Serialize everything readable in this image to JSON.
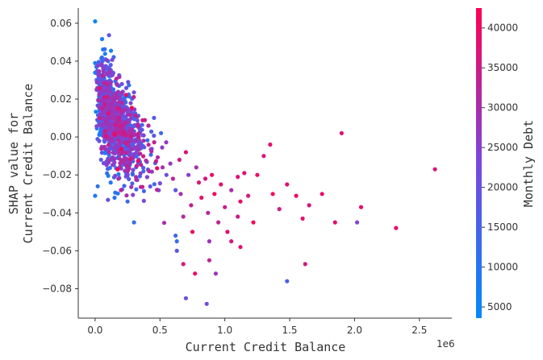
{
  "chart_data": {
    "type": "scatter",
    "title": "",
    "xlabel": "Current Credit Balance",
    "x_offset_text": "1e6",
    "ylabel_line1": "SHAP value for",
    "ylabel_line2": "Current Credit Balance",
    "xlim": [
      -0.13,
      2.75
    ],
    "ylim": [
      -0.0955,
      0.068
    ],
    "xticks": [
      0.0,
      0.5,
      1.0,
      1.5,
      2.0,
      2.5
    ],
    "xtick_labels": [
      "0.0",
      "0.5",
      "1.0",
      "1.5",
      "2.0",
      "2.5"
    ],
    "yticks": [
      0.06,
      0.04,
      0.02,
      0.0,
      -0.02,
      -0.04,
      -0.06,
      -0.08
    ],
    "ytick_labels": [
      "0.06",
      "0.04",
      "0.02",
      "0.00",
      "−0.02",
      "−0.04",
      "−0.06",
      "−0.08"
    ],
    "colorbar": {
      "label": "Monthly Debt",
      "range": [
        3600,
        42500
      ],
      "ticks": [
        5000,
        10000,
        15000,
        20000,
        25000,
        30000,
        35000,
        40000
      ],
      "tick_labels": [
        "5000",
        "10000",
        "15000",
        "20000",
        "25000",
        "30000",
        "35000",
        "40000"
      ],
      "color_low": "#008afb",
      "color_mid": "#7a47dd",
      "color_high": "#ff0052"
    },
    "grid": false,
    "legend": "none",
    "cluster": {
      "count": 1100,
      "x_range": [
        0.0,
        0.62
      ],
      "note_data": "dense cluster near origin; high-x tail listed in points"
    },
    "points": [
      [
        0.0,
        0.061,
        5000
      ],
      [
        0.0,
        0.039,
        8000
      ],
      [
        0.01,
        0.037,
        9000
      ],
      [
        0.0,
        0.034,
        7000
      ],
      [
        0.08,
        0.041,
        14000
      ],
      [
        0.1,
        0.04,
        12000
      ],
      [
        0.12,
        0.038,
        16000
      ],
      [
        0.09,
        0.036,
        11000
      ],
      [
        0.03,
        0.028,
        9000
      ],
      [
        0.07,
        0.031,
        15000
      ],
      [
        0.05,
        0.022,
        13000
      ],
      [
        0.52,
        -0.016,
        30000
      ],
      [
        0.55,
        -0.02,
        21000
      ],
      [
        0.58,
        -0.014,
        27000
      ],
      [
        0.6,
        -0.022,
        33000
      ],
      [
        0.62,
        -0.028,
        18000
      ],
      [
        0.65,
        -0.012,
        35000
      ],
      [
        0.66,
        -0.03,
        29000
      ],
      [
        0.68,
        -0.042,
        31000
      ],
      [
        0.7,
        -0.008,
        38000
      ],
      [
        0.72,
        -0.02,
        26000
      ],
      [
        0.74,
        -0.036,
        34000
      ],
      [
        0.75,
        -0.05,
        40000
      ],
      [
        0.78,
        -0.016,
        30000
      ],
      [
        0.8,
        -0.024,
        37000
      ],
      [
        0.82,
        -0.032,
        39000
      ],
      [
        0.85,
        -0.022,
        36000
      ],
      [
        0.87,
        -0.04,
        32000
      ],
      [
        0.88,
        -0.055,
        28000
      ],
      [
        0.9,
        -0.02,
        40000
      ],
      [
        0.92,
        -0.03,
        41000
      ],
      [
        0.95,
        -0.045,
        33000
      ],
      [
        0.97,
        -0.025,
        38000
      ],
      [
        1.0,
        -0.037,
        34000
      ],
      [
        1.02,
        -0.05,
        39000
      ],
      [
        1.05,
        -0.028,
        30000
      ],
      [
        1.1,
        -0.021,
        37000
      ],
      [
        1.12,
        -0.034,
        40000
      ],
      [
        1.1,
        -0.042,
        35000
      ],
      [
        1.15,
        -0.019,
        38000
      ],
      [
        1.18,
        -0.031,
        36000
      ],
      [
        1.22,
        -0.045,
        41000
      ],
      [
        1.25,
        -0.02,
        40000
      ],
      [
        1.3,
        -0.01,
        37000
      ],
      [
        1.35,
        -0.004,
        39000
      ],
      [
        1.37,
        -0.03,
        41000
      ],
      [
        1.42,
        -0.038,
        35000
      ],
      [
        1.48,
        -0.025,
        38000
      ],
      [
        1.55,
        -0.031,
        40000
      ],
      [
        1.6,
        -0.043,
        39000
      ],
      [
        1.62,
        -0.067,
        36000
      ],
      [
        1.65,
        -0.036,
        37000
      ],
      [
        1.75,
        -0.03,
        39000
      ],
      [
        1.85,
        -0.045,
        38000
      ],
      [
        1.9,
        0.002,
        37000
      ],
      [
        2.02,
        -0.045,
        24000
      ],
      [
        2.05,
        -0.037,
        40000
      ],
      [
        2.32,
        -0.048,
        39000
      ],
      [
        2.62,
        -0.017,
        37000
      ],
      [
        1.48,
        -0.076,
        16000
      ],
      [
        0.62,
        -0.052,
        14000
      ],
      [
        0.63,
        -0.055,
        12000
      ],
      [
        0.7,
        -0.085,
        20000
      ],
      [
        0.86,
        -0.088,
        22000
      ],
      [
        0.63,
        -0.06,
        18000
      ],
      [
        0.68,
        -0.067,
        36000
      ],
      [
        0.77,
        -0.072,
        40000
      ],
      [
        0.88,
        -0.065,
        33000
      ],
      [
        0.93,
        -0.072,
        28000
      ],
      [
        1.05,
        -0.055,
        36000
      ],
      [
        1.12,
        -0.058,
        38000
      ],
      [
        0.3,
        -0.045,
        12000
      ],
      [
        0.15,
        -0.032,
        10000
      ],
      [
        0.12,
        -0.024,
        9000
      ],
      [
        0.0,
        -0.031,
        8000
      ],
      [
        0.02,
        -0.026,
        11000
      ],
      [
        0.25,
        -0.034,
        13000
      ],
      [
        0.18,
        -0.022,
        30000
      ]
    ]
  }
}
